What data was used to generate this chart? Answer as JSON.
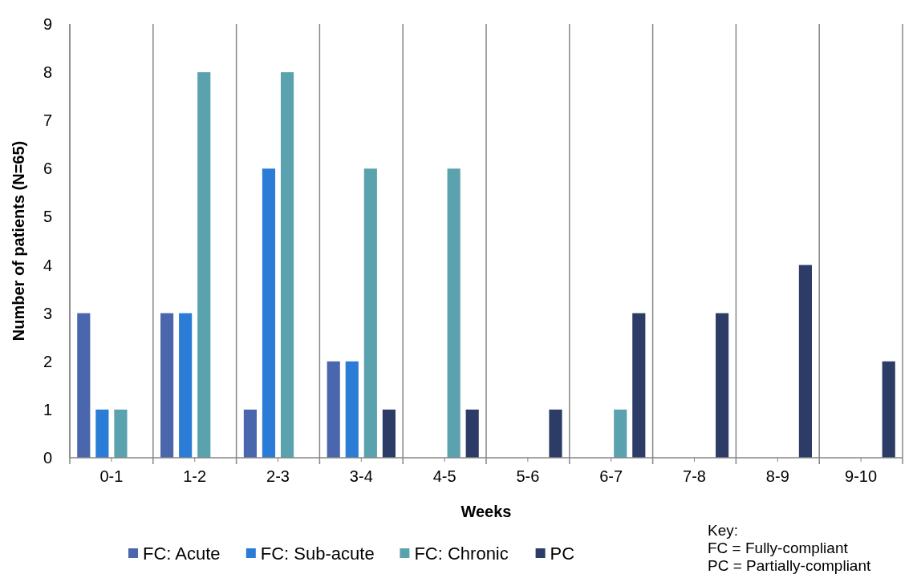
{
  "chart_data": {
    "type": "bar",
    "xlabel": "Weeks",
    "ylabel": "Number of patients (N=65)",
    "categories": [
      "0-1",
      "1-2",
      "2-3",
      "3-4",
      "4-5",
      "5-6",
      "6-7",
      "7-8",
      "8-9",
      "9-10"
    ],
    "series": [
      {
        "name": "FC: Acute",
        "color": "#4a66ac",
        "values": [
          3,
          3,
          1,
          2,
          0,
          0,
          0,
          0,
          0,
          0
        ]
      },
      {
        "name": "FC: Sub-acute",
        "color": "#2a7cd6",
        "values": [
          1,
          3,
          6,
          2,
          0,
          0,
          0,
          0,
          0,
          0
        ]
      },
      {
        "name": "FC: Chronic",
        "color": "#5aa2ae",
        "values": [
          1,
          8,
          8,
          6,
          6,
          0,
          1,
          0,
          0,
          0
        ]
      },
      {
        "name": "PC",
        "color": "#2c3c66",
        "values": [
          0,
          0,
          0,
          1,
          1,
          1,
          3,
          3,
          4,
          2
        ]
      }
    ],
    "ylim": [
      0,
      9
    ],
    "yticks": [
      0,
      1,
      2,
      3,
      4,
      5,
      6,
      7,
      8,
      9
    ],
    "grid": "x",
    "legend": "bottom",
    "annotations": [
      "Key:",
      "FC = Fully-compliant",
      "PC = Partially-compliant"
    ]
  }
}
